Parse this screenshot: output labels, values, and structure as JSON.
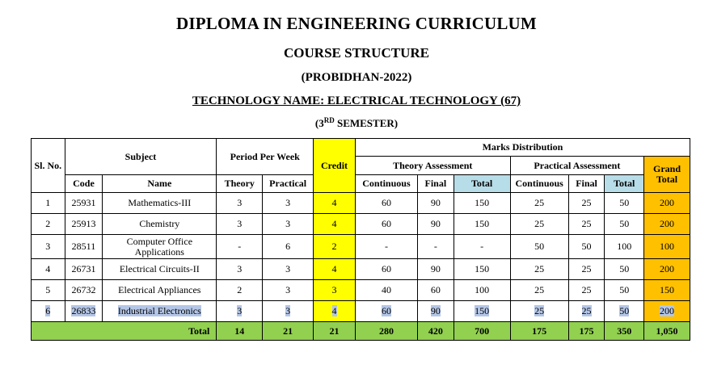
{
  "headings": {
    "title": "DIPLOMA IN ENGINEERING CURRICULUM",
    "subtitle": "COURSE STRUCTURE",
    "edition": "(PROBIDHAN-2022)",
    "technology": "TECHNOLOGY NAME: ELECTRICAL TECHNOLOGY (67)",
    "semester_prefix": "(3",
    "semester_sup": "RD",
    "semester_suffix": " SEMESTER)"
  },
  "table": {
    "headers": {
      "sl_no": "Sl. No.",
      "subject": "Subject",
      "code": "Code",
      "name": "Name",
      "period_per_week": "Period Per Week",
      "theory": "Theory",
      "practical": "Practical",
      "credit": "Credit",
      "marks_distribution": "Marks Distribution",
      "theory_assessment": "Theory Assessment",
      "practical_assessment": "Practical Assessment",
      "continuous": "Continuous",
      "final": "Final",
      "total": "Total",
      "grand_total": "Grand Total"
    },
    "rows": [
      {
        "sl": "1",
        "code": "25931",
        "name": "Mathematics-III",
        "theory": "3",
        "practical": "3",
        "credit": "4",
        "t_cont": "60",
        "t_final": "90",
        "t_total": "150",
        "p_cont": "25",
        "p_final": "25",
        "p_total": "50",
        "grand": "200"
      },
      {
        "sl": "2",
        "code": "25913",
        "name": "Chemistry",
        "theory": "3",
        "practical": "3",
        "credit": "4",
        "t_cont": "60",
        "t_final": "90",
        "t_total": "150",
        "p_cont": "25",
        "p_final": "25",
        "p_total": "50",
        "grand": "200"
      },
      {
        "sl": "3",
        "code": "28511",
        "name": "Computer Office Applications",
        "theory": "-",
        "practical": "6",
        "credit": "2",
        "t_cont": "-",
        "t_final": "-",
        "t_total": "-",
        "p_cont": "50",
        "p_final": "50",
        "p_total": "100",
        "grand": "100"
      },
      {
        "sl": "4",
        "code": "26731",
        "name": "Electrical Circuits-II",
        "theory": "3",
        "practical": "3",
        "credit": "4",
        "t_cont": "60",
        "t_final": "90",
        "t_total": "150",
        "p_cont": "25",
        "p_final": "25",
        "p_total": "50",
        "grand": "200"
      },
      {
        "sl": "5",
        "code": "26732",
        "name": "Electrical Appliances",
        "theory": "2",
        "practical": "3",
        "credit": "3",
        "t_cont": "40",
        "t_final": "60",
        "t_total": "100",
        "p_cont": "25",
        "p_final": "25",
        "p_total": "50",
        "grand": "150"
      },
      {
        "sl": "6",
        "code": "26833",
        "name": "Industrial Electronics",
        "theory": "3",
        "practical": "3",
        "credit": "4",
        "t_cont": "60",
        "t_final": "90",
        "t_total": "150",
        "p_cont": "25",
        "p_final": "25",
        "p_total": "50",
        "grand": "200"
      }
    ],
    "totals": {
      "label": "Total",
      "theory": "14",
      "practical": "21",
      "credit": "21",
      "t_cont": "280",
      "t_final": "420",
      "t_total": "700",
      "p_cont": "175",
      "p_final": "175",
      "p_total": "350",
      "grand": "1,050"
    }
  },
  "colors": {
    "credit_highlight": "#ffff00",
    "grand_total_highlight": "#ffc000",
    "total_column_highlight": "#b7dde8",
    "totals_row": "#92d050",
    "selection": "#b4c6e7"
  }
}
